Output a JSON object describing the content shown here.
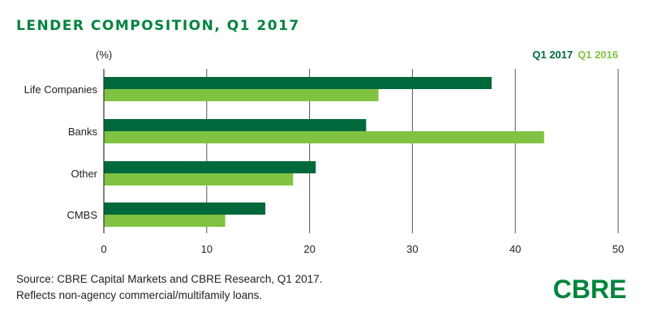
{
  "title": "LENDER COMPOSITION, Q1 2017",
  "source_lines": [
    "Source: CBRE Capital Markets and CBRE Research, Q1 2017.",
    "Reflects non-agency commercial/multifamily loans."
  ],
  "logo_text": "CBRE",
  "colors": {
    "dark_green": "#00693c",
    "light_green": "#80c342",
    "brand": "#00843d",
    "grid": "#555555"
  },
  "chart_data": {
    "type": "bar",
    "orientation": "horizontal",
    "title": "LENDER COMPOSITION, Q1 2017",
    "unit_label": "(%)",
    "categories": [
      "Life Companies",
      "Banks",
      "Other",
      "CMBS"
    ],
    "series": [
      {
        "name": "Q1 2017",
        "color": "#00693c",
        "values": [
          37.7,
          25.5,
          20.6,
          15.7
        ]
      },
      {
        "name": "Q1 2016",
        "color": "#80c342",
        "values": [
          26.7,
          42.8,
          18.4,
          11.8
        ]
      }
    ],
    "xlim": [
      0,
      50
    ],
    "xticks": [
      0,
      10,
      20,
      30,
      40,
      50
    ],
    "grid": true,
    "legend_position": "top-right"
  }
}
